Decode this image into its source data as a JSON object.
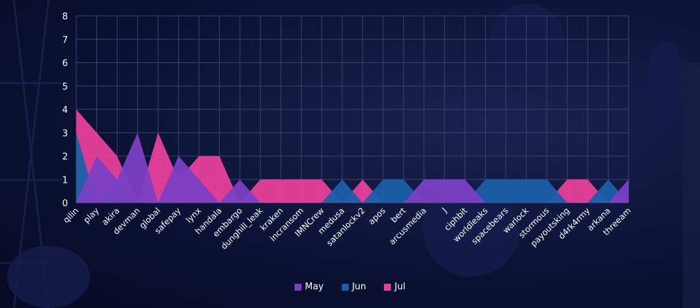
{
  "chart_data": {
    "type": "area",
    "categories": [
      "qilin",
      "play",
      "akira",
      "devman",
      "global",
      "safepay",
      "lynx",
      "handala",
      "embargo",
      "dunghill_leak",
      "kraken",
      "incransom",
      "IMNCrew",
      "medusa",
      "satanlockv2",
      "apos",
      "bert",
      "arcusmedia",
      "J",
      "ciphbit",
      "worldleaks",
      "spacebears",
      "warlock",
      "stormous",
      "payoutsking",
      "d4rk4rmy",
      "arkana",
      "threeam"
    ],
    "series": [
      {
        "name": "May",
        "color": "#7b3fc4",
        "values": [
          0,
          2,
          1,
          3,
          0,
          2,
          1,
          0,
          1,
          0,
          0,
          0,
          0,
          0,
          0,
          0,
          0,
          1,
          1,
          1,
          0,
          0,
          0,
          0,
          0,
          0,
          0,
          1
        ]
      },
      {
        "name": "Jun",
        "color": "#1a5fa8",
        "values": [
          3,
          0,
          1,
          0,
          0,
          0,
          0,
          0,
          0,
          0,
          0,
          0,
          0,
          1,
          0,
          1,
          1,
          0,
          0,
          0,
          1,
          1,
          1,
          1,
          0,
          0,
          1,
          0
        ]
      },
      {
        "name": "Jul",
        "color": "#e8409a",
        "values": [
          4,
          3,
          2,
          0,
          3,
          1,
          2,
          2,
          0,
          1,
          1,
          1,
          1,
          0,
          1,
          0,
          0,
          0,
          0,
          0,
          0,
          0,
          0,
          0,
          1,
          1,
          0,
          0
        ]
      }
    ],
    "ylim": [
      0,
      8
    ],
    "yticks": [
      "0",
      "1",
      "2",
      "3",
      "4",
      "5",
      "6",
      "7",
      "8"
    ],
    "grid": true,
    "legend_position": "bottom"
  }
}
